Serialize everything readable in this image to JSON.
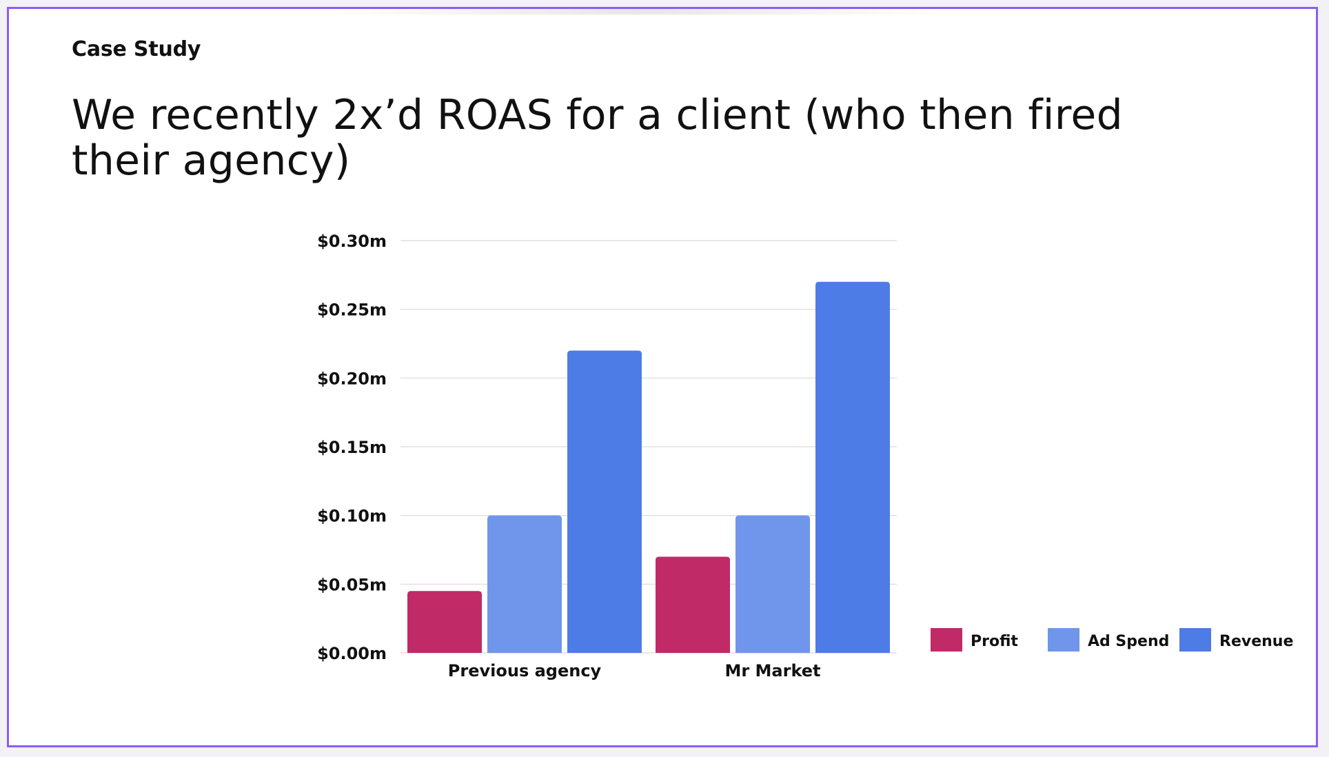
{
  "slide": {
    "eyebrow": "Case Study",
    "headline": "We recently 2x’d ROAS for a client (who then fired their agency)"
  },
  "colors": {
    "frame_border": "#8b5cf6",
    "profit": "#c02a67",
    "ad_spend": "#7096ec",
    "revenue": "#4e7ce6",
    "gridline": "#d9d9d9"
  },
  "chart_data": {
    "type": "bar",
    "categories": [
      "Previous agency",
      "Mr Market"
    ],
    "series": [
      {
        "name": "Profit",
        "values": [
          0.045,
          0.07
        ],
        "color": "#c02a67"
      },
      {
        "name": "Ad Spend",
        "values": [
          0.1,
          0.1
        ],
        "color": "#7096ec"
      },
      {
        "name": "Revenue",
        "values": [
          0.22,
          0.27
        ],
        "color": "#4e7ce6"
      }
    ],
    "ylim": [
      0,
      0.3
    ],
    "yticks": [
      0,
      0.05,
      0.1,
      0.15,
      0.2,
      0.25,
      0.3
    ],
    "ytick_labels": [
      "$0.00m",
      "$0.05m",
      "$0.10m",
      "$0.15m",
      "$0.20m",
      "$0.25m",
      "$0.30m"
    ],
    "grid": true,
    "legend_position": "bottom-right",
    "title": "",
    "xlabel": "",
    "ylabel": ""
  }
}
